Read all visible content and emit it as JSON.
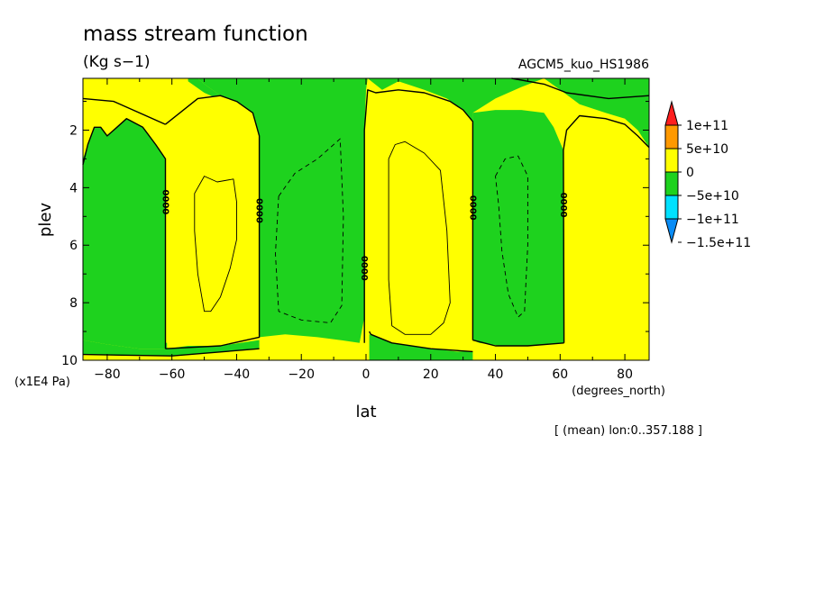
{
  "chart_data": {
    "type": "heatmap",
    "title": "mass stream function",
    "units": "(Kg s−1)",
    "run_label": "AGCM5_kuo_HS1986",
    "xlabel": "lat",
    "x_units": "(degrees_north)",
    "ylabel": "plev",
    "y_units": "(x1E4 Pa)",
    "footnote": "[ (mean) lon:0..357.188 ]",
    "xlim": [
      -87.5,
      87.5
    ],
    "ylim": [
      10,
      0.2
    ],
    "x_ticks": [
      -80,
      -60,
      -40,
      -20,
      0,
      20,
      40,
      60,
      80
    ],
    "x_tick_labels": [
      "−80",
      "−60",
      "−40",
      "−20",
      "0",
      "20",
      "40",
      "60",
      "80"
    ],
    "y_ticks": [
      2,
      4,
      6,
      8,
      10
    ],
    "y_tick_labels": [
      "2",
      "4",
      "6",
      "8",
      "10"
    ],
    "contour_labels": [
      {
        "text": "0000",
        "lat": -62,
        "plev": 4.5
      },
      {
        "text": "0000",
        "lat": -33,
        "plev": 4.8
      },
      {
        "text": "0000",
        "lat": -0.5,
        "plev": 6.8
      },
      {
        "text": "0000",
        "lat": 33,
        "plev": 4.7
      },
      {
        "text": "0000",
        "lat": 61,
        "plev": 4.6
      }
    ],
    "colorbar": {
      "colors": [
        "#0a8cf5",
        "#00e1ff",
        "#1ed21e",
        "#ffff00",
        "#ff9900",
        "#ff1e1e"
      ],
      "labels": [
        "1e+11",
        "5e+10",
        "0",
        "−5e+10",
        "−1e+11",
        "−1.5e+11"
      ],
      "boundaries": [
        -150000000000.0,
        -100000000000.0,
        -50000000000.0,
        0,
        50000000000.0,
        100000000000.0
      ]
    },
    "regions": [
      {
        "sign": "positive",
        "color": "#ffff00",
        "lat": [
          -87.5,
          87.5
        ],
        "plev": [
          0.2,
          10
        ],
        "note": "background level 0 to 5e10"
      },
      {
        "sign": "negative",
        "color": "#1ed21e",
        "lat": [
          -87,
          -62
        ],
        "plev": [
          1.6,
          9.6
        ]
      },
      {
        "sign": "negative",
        "color": "#1ed21e",
        "lat": [
          -62,
          0
        ],
        "plev": [
          0.2,
          1.8
        ]
      },
      {
        "sign": "negative",
        "color": "#1ed21e",
        "lat": [
          -33,
          0
        ],
        "plev": [
          0.2,
          9.3
        ]
      },
      {
        "sign": "negative",
        "color": "#1ed21e",
        "lat": [
          0,
          33
        ],
        "plev": [
          0.2,
          1.5
        ]
      },
      {
        "sign": "negative",
        "color": "#1ed21e",
        "lat": [
          33,
          61
        ],
        "plev": [
          1.5,
          9.5
        ]
      },
      {
        "sign": "negative",
        "color": "#1ed21e",
        "lat": [
          61,
          87.5
        ],
        "plev": [
          0.2,
          1.2
        ]
      }
    ]
  }
}
